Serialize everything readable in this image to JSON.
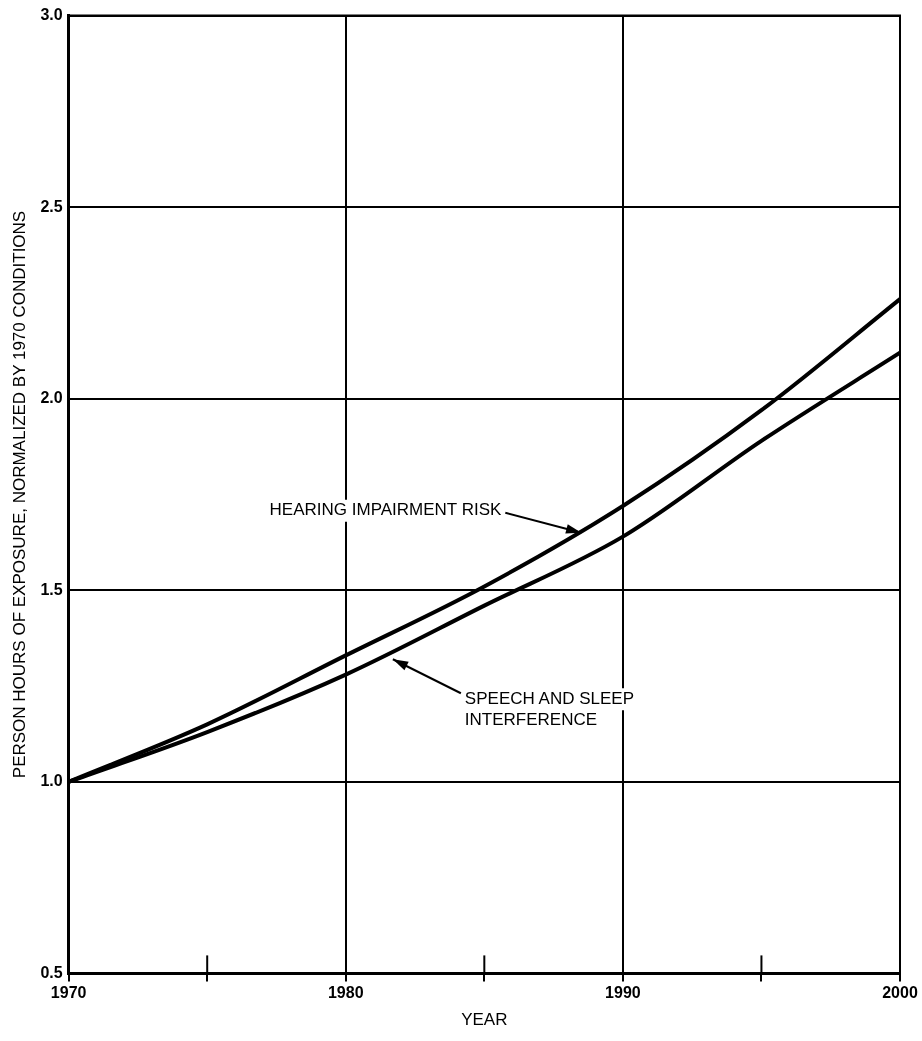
{
  "chart_data": {
    "type": "line",
    "xlabel": "YEAR",
    "ylabel": "PERSON HOURS OF EXPOSURE, NORMALIZED BY 1970 CONDITIONS",
    "x": [
      1970,
      1975,
      1980,
      1985,
      1990,
      1995,
      2000
    ],
    "series": [
      {
        "color": "#000000",
        "values": [
          1.0,
          1.15,
          1.33,
          1.51,
          1.72,
          1.97,
          2.26
        ]
      },
      {
        "color": "#000000",
        "values": [
          1.0,
          1.13,
          1.28,
          1.46,
          1.64,
          1.89,
          2.12
        ]
      }
    ],
    "annotations": [
      {
        "text": "HEARING IMPAIRMENT RISK",
        "x": 1988.5,
        "y": 1.65
      },
      {
        "text": "SPEECH AND SLEEP\nINTERFERENCE",
        "x": 1981.7,
        "y": 1.32
      }
    ],
    "xlim": [
      1970,
      2000
    ],
    "xticks": [
      1970,
      {
        "value": 1975,
        "label": null
      },
      1980,
      {
        "value": 1985,
        "label": null
      },
      1990,
      {
        "value": 1995,
        "label": null
      },
      2000
    ],
    "ylim": [
      0.5,
      3.0
    ],
    "yticks": [
      {
        "value": 0.5,
        "label": "0.5"
      },
      {
        "value": 1.0,
        "label": "1.0"
      },
      {
        "value": 1.5,
        "label": "1.5"
      },
      {
        "value": 2.0,
        "label": "2.0"
      },
      {
        "value": 2.5,
        "label": "2.5"
      },
      {
        "value": 3.0,
        "label": "3.0"
      }
    ],
    "grid": true,
    "legend": false,
    "marker": "none",
    "line_style": "solid"
  }
}
